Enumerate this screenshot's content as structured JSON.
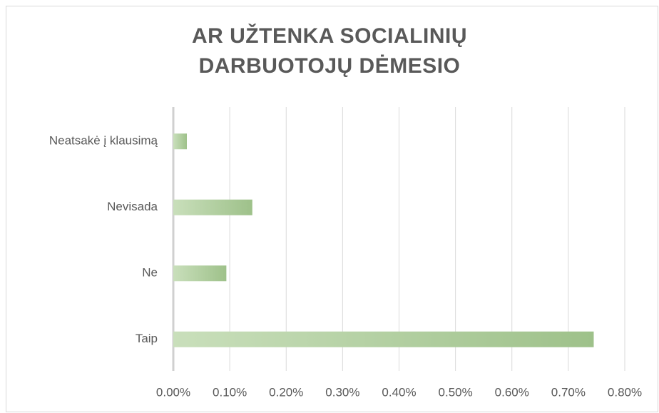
{
  "chart_data": {
    "type": "bar",
    "orientation": "horizontal",
    "title": "AR UŽTENKA SOCIALINIŲ DARBUOTOJŲ DĖMESIO",
    "categories": [
      "Neatsakė į klausimą",
      "Nevisada",
      "Ne",
      "Taip"
    ],
    "values": [
      0.024,
      0.14,
      0.094,
      0.745
    ],
    "color": "#a9cb96",
    "xlim": [
      0,
      0.8
    ],
    "xticks": [
      {
        "value": 0,
        "label": "0.00%"
      },
      {
        "value": 0.1,
        "label": "0.10%"
      },
      {
        "value": 0.2,
        "label": "0.20%"
      },
      {
        "value": 0.3,
        "label": "0.30%"
      },
      {
        "value": 0.4,
        "label": "0.40%"
      },
      {
        "value": 0.5,
        "label": "0.50%"
      },
      {
        "value": 0.6,
        "label": "0.60%"
      },
      {
        "value": 0.7,
        "label": "0.70%"
      },
      {
        "value": 0.8,
        "label": "0.80%"
      }
    ],
    "grid": true
  }
}
